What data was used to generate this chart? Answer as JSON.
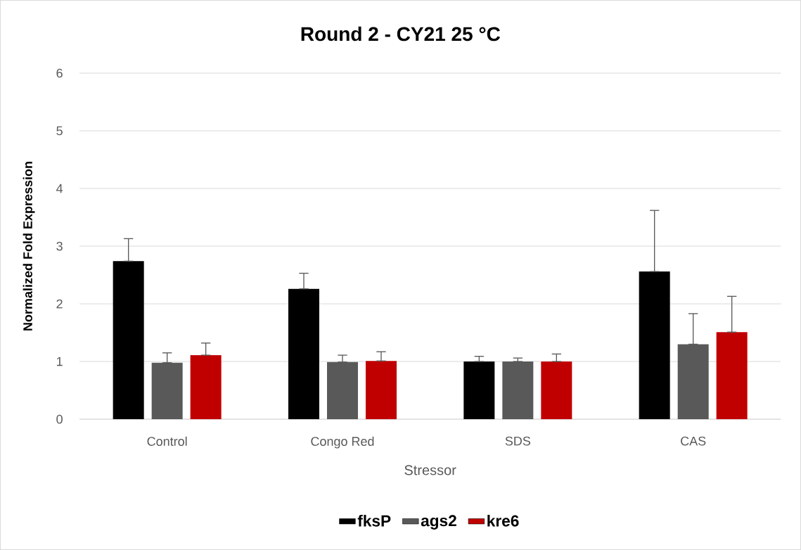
{
  "chart_data": {
    "type": "bar",
    "title": "Round 2 - CY21 25 °C",
    "xlabel": "Stressor",
    "ylabel": "Normalized Fold Expression",
    "categories": [
      "Control",
      "Congo Red",
      "SDS",
      "CAS"
    ],
    "series": [
      {
        "name": "fksP",
        "color": "#000000",
        "values": [
          2.74,
          2.26,
          1.0,
          2.56
        ],
        "errors": [
          [
            2.74,
            3.13
          ],
          [
            2.26,
            2.53
          ],
          [
            1.0,
            1.09
          ],
          [
            2.56,
            3.62
          ]
        ]
      },
      {
        "name": "ags2",
        "color": "#595959",
        "values": [
          0.98,
          0.99,
          1.0,
          1.3
        ],
        "errors": [
          [
            0.98,
            1.15
          ],
          [
            0.99,
            1.11
          ],
          [
            1.0,
            1.06
          ],
          [
            1.3,
            1.83
          ]
        ]
      },
      {
        "name": "kre6",
        "color": "#c00000",
        "values": [
          1.11,
          1.01,
          1.0,
          1.51
        ],
        "errors": [
          [
            1.11,
            1.32
          ],
          [
            1.01,
            1.17
          ],
          [
            1.0,
            1.13
          ],
          [
            1.51,
            2.13
          ]
        ]
      }
    ],
    "ylim": [
      0,
      6
    ],
    "yticks": [
      0,
      1,
      2,
      3,
      4,
      5,
      6
    ],
    "grid": "y",
    "legend": "bottom"
  }
}
